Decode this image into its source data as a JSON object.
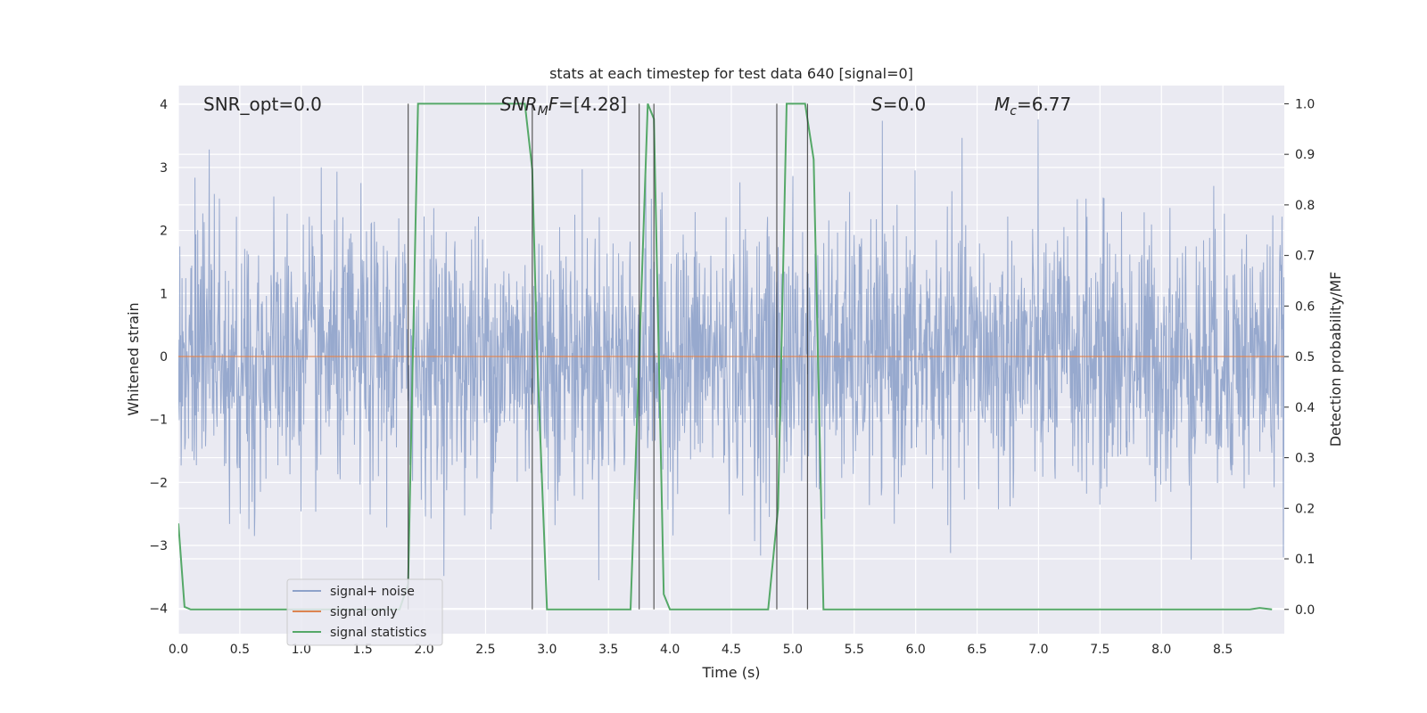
{
  "chart_data": {
    "type": "line",
    "title": "stats at each timestep for test data 640 [signal=0]",
    "xlabel": "Time (s)",
    "ylabel_left": "Whitened strain",
    "ylabel_right": "Detection probability/MF",
    "xlim": [
      0.0,
      9.0
    ],
    "ylim_left": [
      -4.4,
      4.3
    ],
    "ylim_right": [
      -0.048,
      1.036
    ],
    "x_ticks": [
      "0.0",
      "0.5",
      "1.0",
      "1.5",
      "2.0",
      "2.5",
      "3.0",
      "3.5",
      "4.0",
      "4.5",
      "5.0",
      "5.5",
      "6.0",
      "6.5",
      "7.0",
      "7.5",
      "8.0",
      "8.5"
    ],
    "y_left_ticks": [
      "4",
      "3",
      "2",
      "1",
      "0",
      "−1",
      "−2",
      "−3",
      "−4"
    ],
    "y_right_ticks": [
      "1.0",
      "0.9",
      "0.8",
      "0.7",
      "0.6",
      "0.5",
      "0.4",
      "0.3",
      "0.2",
      "0.1",
      "0.0"
    ],
    "annotations": {
      "snr_opt": "SNR_opt=0.0",
      "snr_mf": "SNR",
      "snr_mf_sub": "M",
      "snr_mf_mid": "F",
      "snr_mf_val": "=[4.28]",
      "s_label": "S",
      "s_val": "=0.0",
      "mc_label": "M",
      "mc_sub": "c",
      "mc_val": "=6.77"
    },
    "grid": true,
    "legend_position": "lower-left",
    "series": [
      {
        "name": "signal+ noise",
        "color": "#8ea2ca",
        "description_values": "whitened noisy strain, approx. Gaussian, spanning about -4 to 4"
      },
      {
        "name": "signal only",
        "color": "#dd8452",
        "values_const": 0.0
      },
      {
        "name": "signal statistics",
        "color": "#55a868",
        "x": [
          0.0,
          0.05,
          0.1,
          0.5,
          1.0,
          1.5,
          1.8,
          1.87,
          1.95,
          2.0,
          2.5,
          2.82,
          2.88,
          2.92,
          3.0,
          3.5,
          3.68,
          3.75,
          3.82,
          3.87,
          3.95,
          4.0,
          4.5,
          4.8,
          4.88,
          4.95,
          5.0,
          5.1,
          5.17,
          5.25,
          5.5,
          6.0,
          7.0,
          8.0,
          8.72,
          8.8,
          8.9
        ],
        "values": [
          0.17,
          0.005,
          0.0,
          0.0,
          0.0,
          0.0,
          0.0,
          0.05,
          1.0,
          1.0,
          1.0,
          1.0,
          0.87,
          0.5,
          0.0,
          0.0,
          0.0,
          0.5,
          1.0,
          0.97,
          0.03,
          0.0,
          0.0,
          0.0,
          0.2,
          1.0,
          1.0,
          1.0,
          0.89,
          0.0,
          0.0,
          0.0,
          0.0,
          0.0,
          0.0,
          0.003,
          0.0
        ]
      }
    ],
    "vertical_lines_x": [
      1.87,
      2.88,
      3.75,
      3.87,
      4.87,
      5.12
    ],
    "legend_labels": [
      "signal+ noise",
      "signal only",
      "signal statistics"
    ]
  }
}
